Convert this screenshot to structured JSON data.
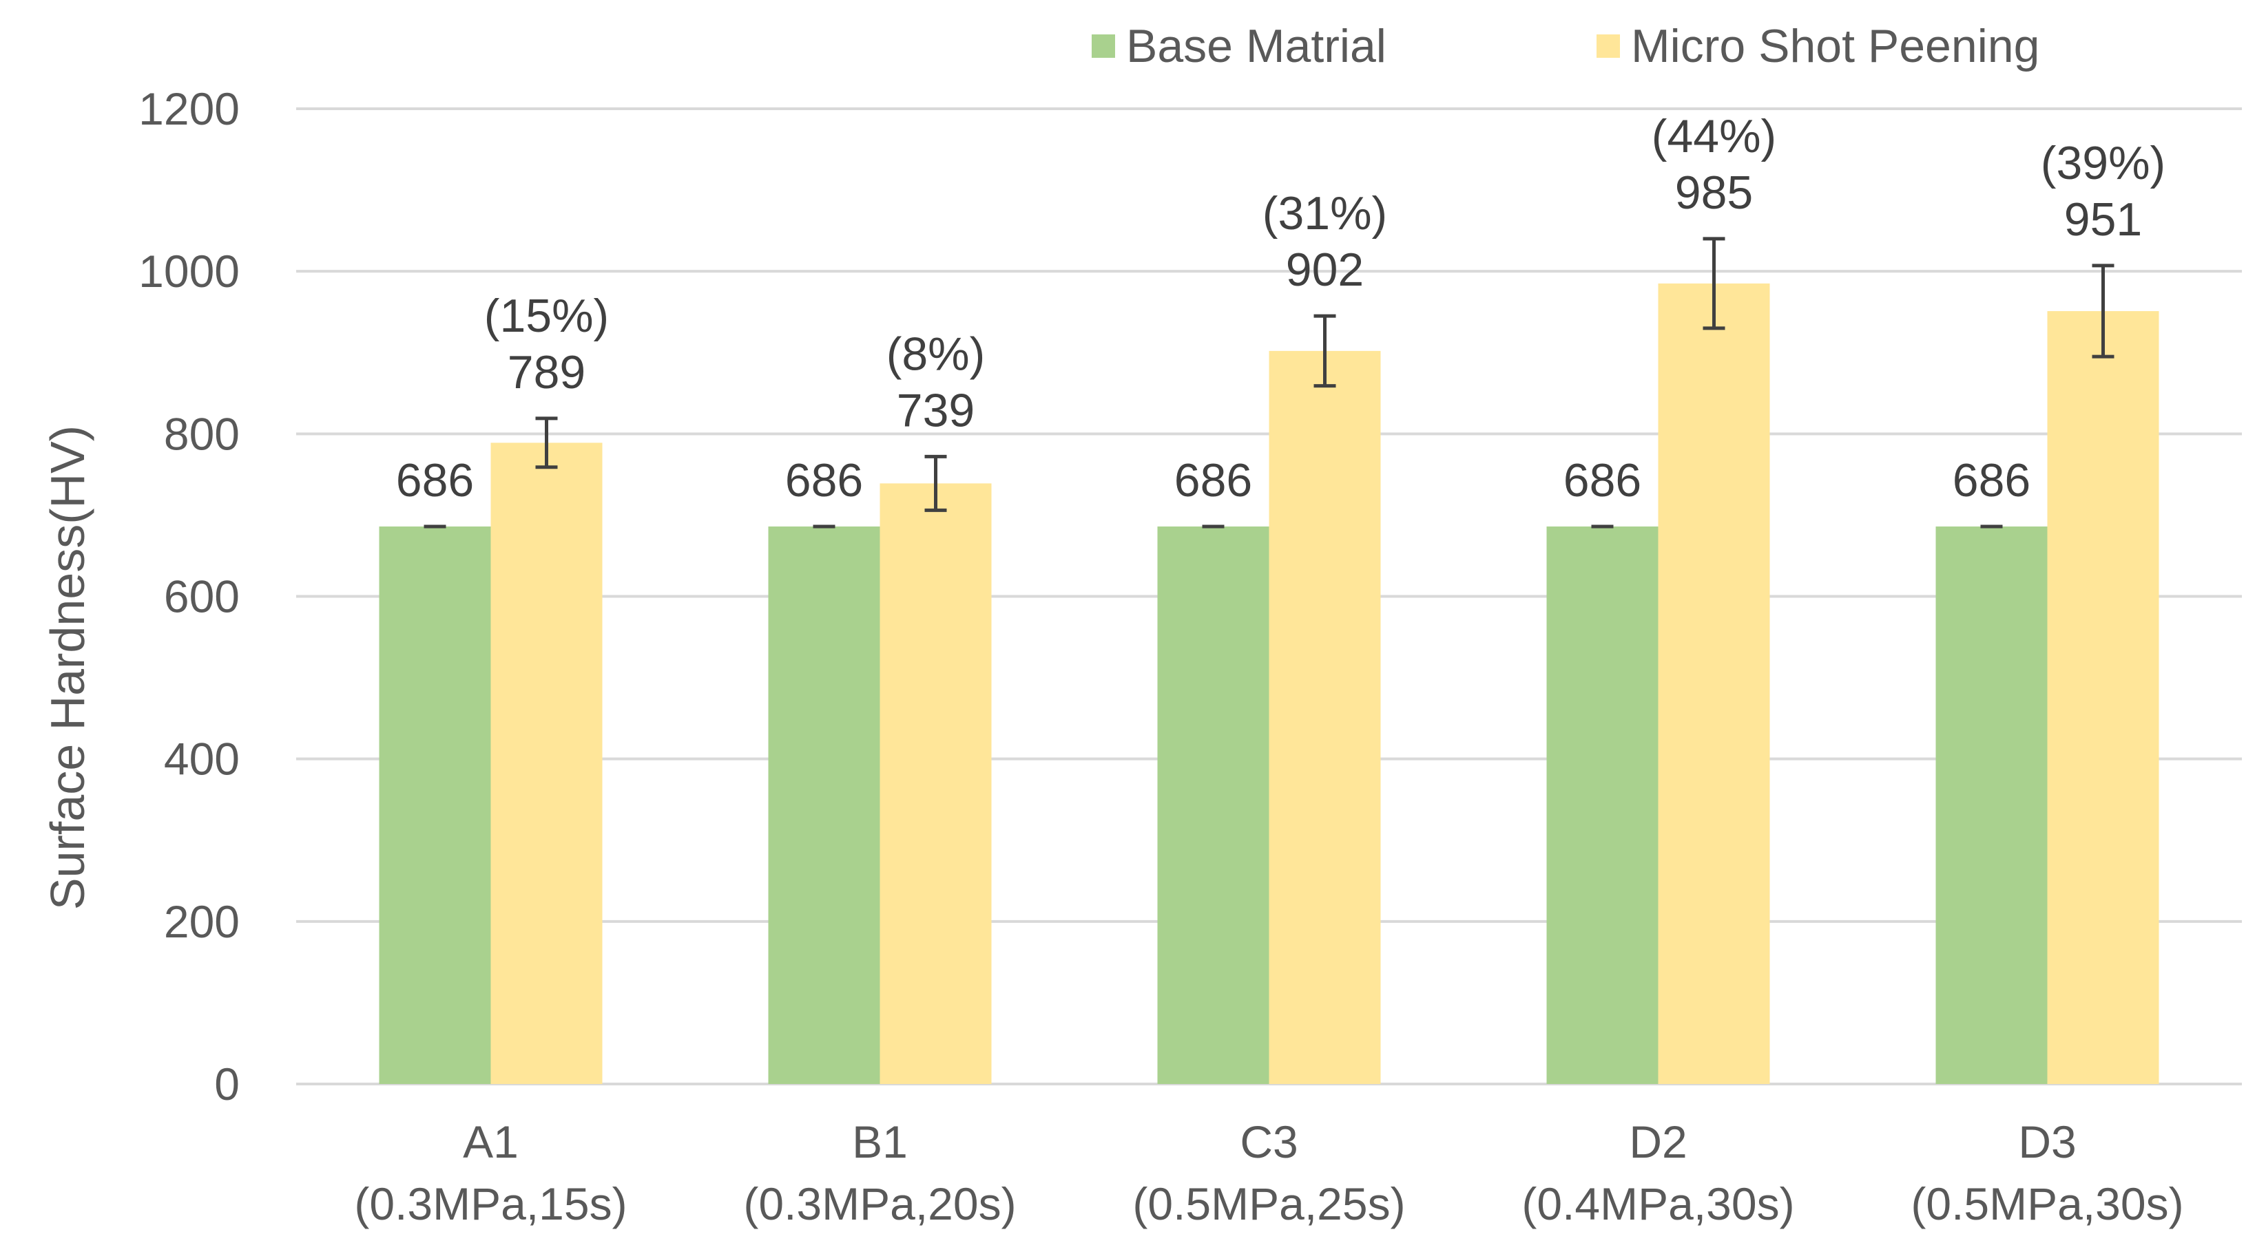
{
  "chart_data": {
    "type": "bar",
    "title": "",
    "xlabel": "",
    "ylabel": "Surface Hardness(HV)",
    "ylim": [
      0,
      1200
    ],
    "yticks": [
      0,
      200,
      400,
      600,
      800,
      1000,
      1200
    ],
    "grid": true,
    "legend_position": "top-right",
    "categories": [
      {
        "name": "A1",
        "condition": "(0.3MPa,15s)"
      },
      {
        "name": "B1",
        "condition": "(0.3MPa,20s)"
      },
      {
        "name": "C3",
        "condition": "(0.5MPa,25s)"
      },
      {
        "name": "D2",
        "condition": "(0.4MPa,30s)"
      },
      {
        "name": "D3",
        "condition": "(0.5MPa,30s)"
      }
    ],
    "series": [
      {
        "name": "Base Matrial",
        "color": "#a9d18e",
        "values": [
          686,
          686,
          686,
          686,
          686
        ],
        "error": [
          0,
          0,
          0,
          0,
          0
        ],
        "labels": [
          "686",
          "686",
          "686",
          "686",
          "686"
        ]
      },
      {
        "name": "Micro Shot Peening",
        "color": "#ffe699",
        "values": [
          789,
          739,
          902,
          985,
          951
        ],
        "error": [
          30,
          33,
          43,
          55,
          56
        ],
        "labels": [
          "789",
          "739",
          "902",
          "985",
          "951"
        ],
        "increase_labels": [
          "(15%)",
          "(8%)",
          "(31%)",
          "(44%)",
          "(39%)"
        ]
      }
    ]
  }
}
